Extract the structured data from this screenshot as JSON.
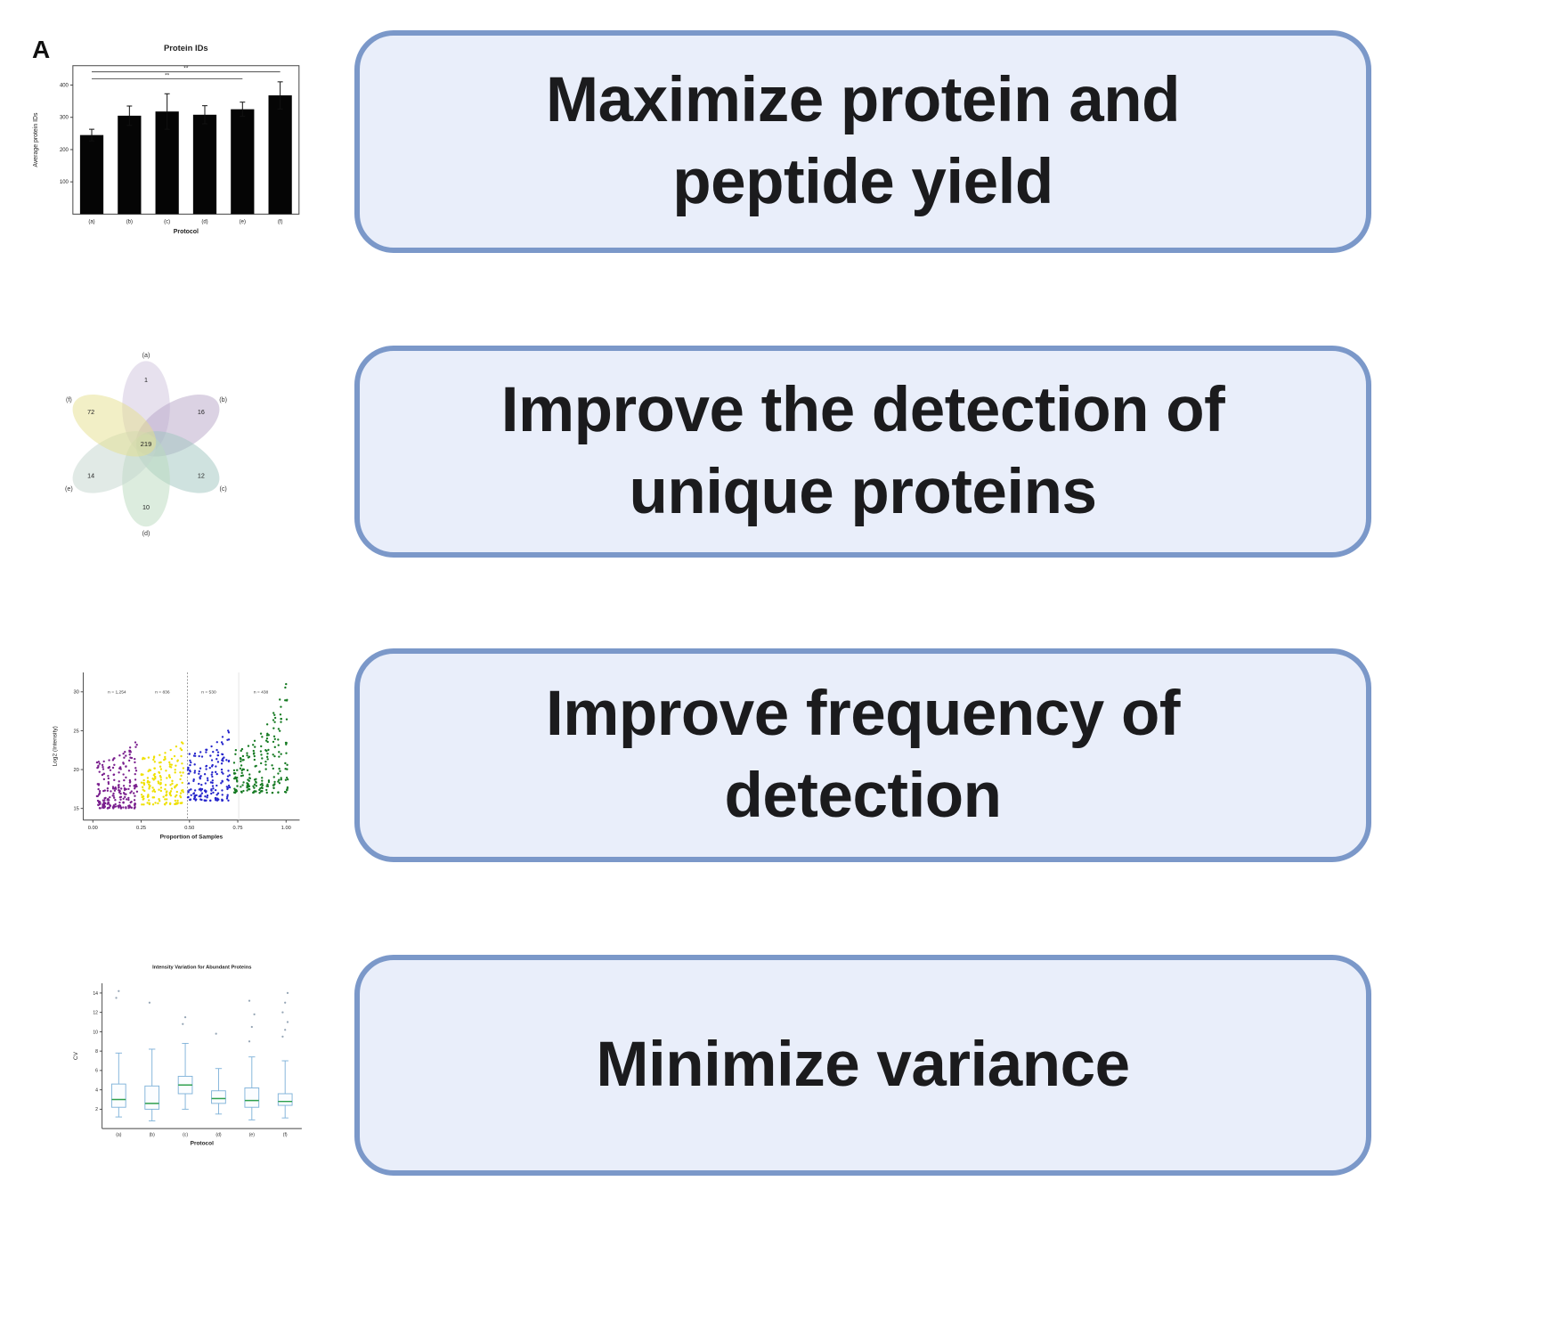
{
  "figure": {
    "panel_label": "A",
    "background": "#ffffff"
  },
  "colors": {
    "callout_bg": "#e9eefa",
    "callout_border": "#7b98c9",
    "callout_text": "#1b1b1d"
  },
  "callouts": [
    {
      "name": "maximize-yield",
      "lines": [
        "Maximize protein and",
        "peptide yield"
      ]
    },
    {
      "name": "unique-proteins",
      "lines": [
        "Improve the detection of",
        "unique proteins"
      ]
    },
    {
      "name": "frequency-detection",
      "lines": [
        "Improve frequency of",
        "detection"
      ]
    },
    {
      "name": "minimize-variance",
      "lines": [
        "Minimize variance"
      ]
    }
  ],
  "chart_data": [
    {
      "type": "bar",
      "title": "Protein IDs",
      "xlabel": "Protocol",
      "ylabel": "Average protein IDs",
      "categories": [
        "(a)",
        "(b)",
        "(c)",
        "(d)",
        "(e)",
        "(f)"
      ],
      "values": [
        245,
        305,
        318,
        308,
        325,
        368
      ],
      "errors": [
        18,
        30,
        55,
        28,
        22,
        42
      ],
      "ylim": [
        0,
        460
      ],
      "yticks": [
        0,
        100,
        200,
        300,
        400
      ],
      "significance": [
        {
          "from": 0,
          "to": 5,
          "label": "**",
          "row": 0
        },
        {
          "from": 0,
          "to": 4,
          "label": "**",
          "row": 1
        }
      ]
    },
    {
      "type": "venn",
      "petals": [
        {
          "label": "(a)",
          "value": 1,
          "angle": 0,
          "color": "#cfc3dd"
        },
        {
          "label": "(b)",
          "value": 16,
          "angle": 60,
          "color": "#b7a6c7"
        },
        {
          "label": "(c)",
          "value": 12,
          "angle": 120,
          "color": "#9fc6bf"
        },
        {
          "label": "(d)",
          "value": 10,
          "angle": 180,
          "color": "#b9d9bd"
        },
        {
          "label": "(e)",
          "value": 14,
          "angle": 240,
          "color": "#c3d6ce"
        },
        {
          "label": "(f)",
          "value": 72,
          "angle": 300,
          "color": "#e6df8e"
        }
      ],
      "center_value": 219
    },
    {
      "type": "scatter",
      "xlabel": "Proportion of Samples",
      "ylabel": "Log2 (Intensity)",
      "xticks": [
        "0.00",
        "0.25",
        "0.50",
        "0.75",
        "1.00"
      ],
      "xtick_values": [
        0,
        0.25,
        0.5,
        0.75,
        1
      ],
      "yticks": [
        15,
        20,
        25,
        30
      ],
      "groups": [
        {
          "label": "n = 1,254",
          "color": "#7a1f8e",
          "x_start": 0.03,
          "x_end": 0.22,
          "cols": 8,
          "points_per_col": 26,
          "y_min": 15,
          "y_top_start": 21,
          "y_top_end": 23.5
        },
        {
          "label": "n = 836",
          "color": "#efe000",
          "x_start": 0.26,
          "x_end": 0.46,
          "cols": 8,
          "points_per_col": 20,
          "y_min": 15.5,
          "y_top_start": 21.5,
          "y_top_end": 23.5
        },
        {
          "label": "n = 530",
          "color": "#2626cc",
          "x_start": 0.5,
          "x_end": 0.7,
          "cols": 8,
          "points_per_col": 20,
          "y_min": 16,
          "y_top_start": 22,
          "y_top_end": 25
        },
        {
          "label": "n = 438",
          "color": "#157a22",
          "x_start": 0.74,
          "x_end": 1.0,
          "cols": 9,
          "points_per_col": 22,
          "y_min": 17,
          "y_top_start": 22.5,
          "y_top_end": 31
        }
      ]
    },
    {
      "type": "box",
      "title": "Intensity Variation for Abundant Proteins",
      "xlabel": "Protocol",
      "ylabel": "CV",
      "categories": [
        "(a)",
        "(b)",
        "(c)",
        "(d)",
        "(e)",
        "(f)"
      ],
      "ylim": [
        0,
        15
      ],
      "yticks": [
        2,
        4,
        6,
        8,
        10,
        12,
        14
      ],
      "boxes": [
        {
          "whisker_low": 1.2,
          "q1": 2.2,
          "median": 3.0,
          "q3": 4.6,
          "whisker_high": 7.8,
          "outliers": [
            13.5,
            14.2
          ]
        },
        {
          "whisker_low": 0.8,
          "q1": 2.0,
          "median": 2.6,
          "q3": 4.4,
          "whisker_high": 8.2,
          "outliers": [
            13.0
          ]
        },
        {
          "whisker_low": 2.0,
          "q1": 3.6,
          "median": 4.5,
          "q3": 5.4,
          "whisker_high": 8.8,
          "outliers": [
            10.8,
            11.5
          ]
        },
        {
          "whisker_low": 1.5,
          "q1": 2.6,
          "median": 3.1,
          "q3": 3.9,
          "whisker_high": 6.2,
          "outliers": [
            9.8
          ]
        },
        {
          "whisker_low": 0.9,
          "q1": 2.2,
          "median": 2.9,
          "q3": 4.2,
          "whisker_high": 7.4,
          "outliers": [
            9.0,
            10.5,
            11.8,
            13.2
          ]
        },
        {
          "whisker_low": 1.1,
          "q1": 2.4,
          "median": 2.8,
          "q3": 3.6,
          "whisker_high": 7.0,
          "outliers": [
            9.5,
            10.2,
            11.0,
            12.0,
            13.0,
            14.0
          ]
        }
      ]
    }
  ]
}
